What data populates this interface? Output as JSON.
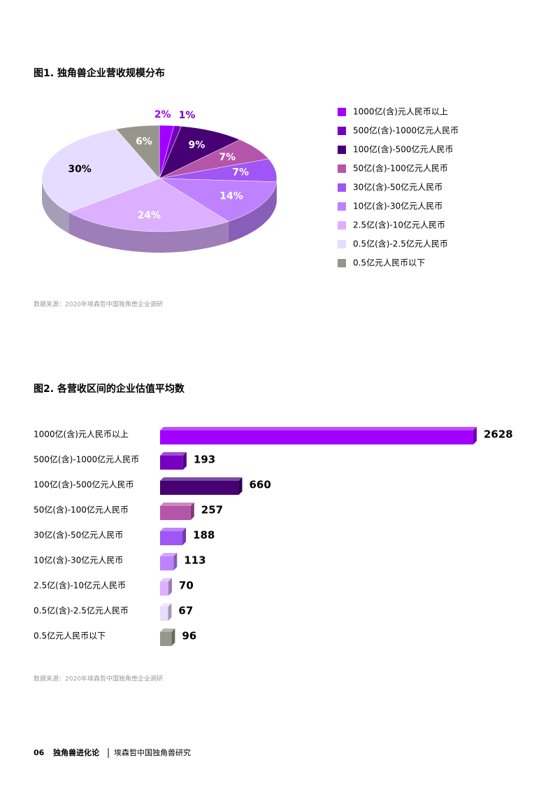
{
  "chart_data": [
    {
      "type": "pie",
      "title": "图1. 独角兽企业营收规模分布",
      "categories": [
        "1000亿(含)元人民币以上",
        "500亿(含)-1000亿元人民币",
        "100亿(含)-500亿元人民币",
        "50亿(含)-100亿元人民币",
        "30亿(含)-50亿元人民币",
        "10亿(含)-30亿元人民币",
        "2.5亿(含)-10亿元人民币",
        "0.5亿(含)-2.5亿元人民币",
        "0.5亿元人民币以下"
      ],
      "values": [
        2,
        1,
        9,
        7,
        7,
        14,
        24,
        30,
        6
      ],
      "value_labels": [
        "2%",
        "1%",
        "9%",
        "7%",
        "7%",
        "14%",
        "24%",
        "30%",
        "6%"
      ],
      "colors": [
        "#a100ff",
        "#7500c0",
        "#460073",
        "#b455aa",
        "#a055f5",
        "#be82ff",
        "#dcafff",
        "#e6dcff",
        "#96968c"
      ],
      "source": "数据来源：2020年埃森哲中国独角兽企业调研"
    },
    {
      "type": "bar",
      "title": "图2. 各营收区间的企业估值平均数",
      "categories": [
        "1000亿(含)元人民币以上",
        "500亿(含)-1000亿元人民币",
        "100亿(含)-500亿元人民币",
        "50亿(含)-100亿元人民币",
        "30亿(含)-50亿元人民币",
        "10亿(含)-30亿元人民币",
        "2.5亿(含)-10亿元人民币",
        "0.5亿(含)-2.5亿元人民币",
        "0.5亿元人民币以下"
      ],
      "values": [
        2628,
        193,
        660,
        257,
        188,
        113,
        70,
        67,
        96
      ],
      "colors": [
        "#a100ff",
        "#7500c0",
        "#460073",
        "#b455aa",
        "#a055f5",
        "#be82ff",
        "#dcafff",
        "#e6dcff",
        "#96968c"
      ],
      "source": "数据来源：2020年埃森哲中国独角兽企业调研"
    }
  ],
  "footer": {
    "page": "06",
    "section": "独角兽进化论",
    "publication": "埃森哲中国独角兽研究"
  }
}
